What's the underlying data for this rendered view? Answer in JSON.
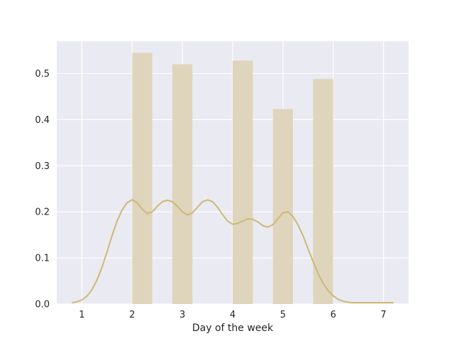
{
  "chart_data": {
    "type": "bar",
    "subtype": "histogram-with-kde",
    "title": "",
    "xlabel": "Day of the week",
    "ylabel": "",
    "xlim": [
      0.5,
      7.5
    ],
    "ylim": [
      0,
      0.57
    ],
    "xticks": [
      1,
      2,
      3,
      4,
      5,
      6,
      7
    ],
    "yticks": [
      0.0,
      0.1,
      0.2,
      0.3,
      0.4,
      0.5
    ],
    "ytick_labels": [
      "0.0",
      "0.1",
      "0.2",
      "0.3",
      "0.4",
      "0.5"
    ],
    "grid": true,
    "background": "#EAEAF2",
    "gridcolor": "#FFFFFF",
    "bar_color": "#DFD5BD",
    "line_color": "#CCB974",
    "bars": [
      {
        "x0": 2.0,
        "x1": 2.4,
        "value": 0.545
      },
      {
        "x0": 2.8,
        "x1": 3.2,
        "value": 0.52
      },
      {
        "x0": 4.0,
        "x1": 4.4,
        "value": 0.528
      },
      {
        "x0": 4.8,
        "x1": 5.2,
        "value": 0.423
      },
      {
        "x0": 5.6,
        "x1": 6.0,
        "value": 0.488
      }
    ],
    "kde": {
      "x": [
        0.8,
        0.9,
        1.0,
        1.1,
        1.2,
        1.3,
        1.4,
        1.5,
        1.6,
        1.7,
        1.8,
        1.9,
        2.0,
        2.1,
        2.2,
        2.3,
        2.4,
        2.5,
        2.6,
        2.7,
        2.8,
        2.9,
        3.0,
        3.1,
        3.2,
        3.3,
        3.4,
        3.5,
        3.6,
        3.7,
        3.8,
        3.9,
        4.0,
        4.1,
        4.2,
        4.3,
        4.4,
        4.5,
        4.6,
        4.7,
        4.8,
        4.9,
        5.0,
        5.1,
        5.2,
        5.3,
        5.4,
        5.5,
        5.6,
        5.7,
        5.8,
        5.9,
        6.0,
        6.1,
        6.2,
        6.3,
        6.4,
        6.5,
        6.6,
        6.7,
        6.8,
        6.9,
        7.0,
        7.1,
        7.2
      ],
      "y": [
        0.003,
        0.005,
        0.009,
        0.017,
        0.031,
        0.052,
        0.08,
        0.113,
        0.148,
        0.18,
        0.204,
        0.22,
        0.226,
        0.22,
        0.206,
        0.196,
        0.2,
        0.212,
        0.222,
        0.225,
        0.222,
        0.212,
        0.2,
        0.193,
        0.198,
        0.21,
        0.222,
        0.226,
        0.222,
        0.21,
        0.194,
        0.18,
        0.173,
        0.175,
        0.18,
        0.185,
        0.184,
        0.178,
        0.17,
        0.167,
        0.172,
        0.185,
        0.198,
        0.2,
        0.19,
        0.172,
        0.148,
        0.12,
        0.092,
        0.066,
        0.045,
        0.029,
        0.018,
        0.01,
        0.006,
        0.004,
        0.003,
        0.003,
        0.003,
        0.003,
        0.003,
        0.003,
        0.003,
        0.003,
        0.003
      ],
      "_note_x_start": 0.8
    }
  }
}
